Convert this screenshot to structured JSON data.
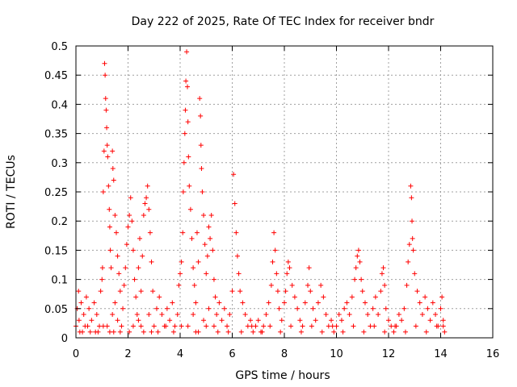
{
  "chart_data": {
    "type": "scatter",
    "title": "Day 222 of 2025, Rate Of TEC Index for receiver bndr",
    "xlabel": "GPS time / hours",
    "ylabel": "ROTI / TECUs",
    "xlim": [
      0,
      16
    ],
    "ylim": [
      0,
      0.5
    ],
    "x_ticks": [
      0,
      2,
      4,
      6,
      8,
      10,
      12,
      14,
      16
    ],
    "y_ticks": [
      0,
      0.05,
      0.1,
      0.15,
      0.2,
      0.25,
      0.3,
      0.35,
      0.4,
      0.45,
      0.5
    ],
    "x_tick_labels": [
      "0",
      "2",
      "4",
      "6",
      "8",
      "10",
      "12",
      "14",
      "16"
    ],
    "y_tick_labels": [
      "0",
      "0.05",
      "0.1",
      "0.15",
      "0.2",
      "0.25",
      "0.3",
      "0.35",
      "0.4",
      "0.45",
      "0.5"
    ],
    "grid": true,
    "marker": "+",
    "series": [
      {
        "name": "ROTI",
        "color": "#ff0000",
        "points": [
          [
            0.0,
            0.02
          ],
          [
            0.05,
            0.05
          ],
          [
            0.1,
            0.08
          ],
          [
            0.12,
            0.03
          ],
          [
            0.2,
            0.06
          ],
          [
            0.25,
            0.01
          ],
          [
            0.3,
            0.04
          ],
          [
            0.4,
            0.07
          ],
          [
            0.45,
            0.02
          ],
          [
            0.5,
            0.05
          ],
          [
            0.6,
            0.03
          ],
          [
            0.7,
            0.06
          ],
          [
            0.75,
            0.01
          ],
          [
            0.8,
            0.04
          ],
          [
            0.9,
            0.02
          ],
          [
            0.95,
            0.08
          ],
          [
            1.0,
            0.1
          ],
          [
            1.02,
            0.12
          ],
          [
            1.05,
            0.25
          ],
          [
            1.08,
            0.32
          ],
          [
            1.1,
            0.47
          ],
          [
            1.12,
            0.45
          ],
          [
            1.14,
            0.41
          ],
          [
            1.16,
            0.39
          ],
          [
            1.18,
            0.36
          ],
          [
            1.2,
            0.33
          ],
          [
            1.22,
            0.31
          ],
          [
            1.25,
            0.26
          ],
          [
            1.28,
            0.22
          ],
          [
            1.3,
            0.19
          ],
          [
            1.32,
            0.15
          ],
          [
            1.35,
            0.12
          ],
          [
            1.4,
            0.32
          ],
          [
            1.42,
            0.29
          ],
          [
            1.45,
            0.27
          ],
          [
            1.5,
            0.21
          ],
          [
            1.55,
            0.18
          ],
          [
            1.6,
            0.14
          ],
          [
            1.65,
            0.11
          ],
          [
            1.7,
            0.08
          ],
          [
            1.2,
            0.02
          ],
          [
            1.3,
            0.01
          ],
          [
            1.4,
            0.04
          ],
          [
            1.5,
            0.06
          ],
          [
            1.6,
            0.03
          ],
          [
            1.7,
            0.01
          ],
          [
            1.8,
            0.05
          ],
          [
            1.85,
            0.09
          ],
          [
            1.9,
            0.12
          ],
          [
            1.95,
            0.16
          ],
          [
            2.0,
            0.19
          ],
          [
            2.05,
            0.21
          ],
          [
            2.1,
            0.24
          ],
          [
            2.15,
            0.2
          ],
          [
            2.2,
            0.15
          ],
          [
            2.25,
            0.1
          ],
          [
            2.3,
            0.07
          ],
          [
            2.35,
            0.04
          ],
          [
            2.4,
            0.12
          ],
          [
            2.45,
            0.17
          ],
          [
            2.5,
            0.08
          ],
          [
            2.55,
            0.14
          ],
          [
            2.6,
            0.21
          ],
          [
            2.65,
            0.23
          ],
          [
            2.7,
            0.24
          ],
          [
            2.75,
            0.26
          ],
          [
            2.8,
            0.22
          ],
          [
            2.85,
            0.18
          ],
          [
            2.9,
            0.13
          ],
          [
            2.95,
            0.08
          ],
          [
            2.2,
            0.02
          ],
          [
            2.4,
            0.03
          ],
          [
            2.6,
            0.01
          ],
          [
            2.8,
            0.04
          ],
          [
            3.0,
            0.02
          ],
          [
            3.1,
            0.05
          ],
          [
            3.2,
            0.07
          ],
          [
            3.3,
            0.04
          ],
          [
            3.4,
            0.02
          ],
          [
            3.5,
            0.05
          ],
          [
            3.6,
            0.03
          ],
          [
            3.7,
            0.06
          ],
          [
            3.8,
            0.02
          ],
          [
            3.9,
            0.04
          ],
          [
            3.95,
            0.09
          ],
          [
            4.0,
            0.11
          ],
          [
            4.05,
            0.13
          ],
          [
            4.1,
            0.18
          ],
          [
            4.12,
            0.25
          ],
          [
            4.15,
            0.3
          ],
          [
            4.18,
            0.35
          ],
          [
            4.2,
            0.39
          ],
          [
            4.22,
            0.44
          ],
          [
            4.25,
            0.49
          ],
          [
            4.28,
            0.43
          ],
          [
            4.3,
            0.37
          ],
          [
            4.32,
            0.31
          ],
          [
            4.35,
            0.26
          ],
          [
            4.4,
            0.22
          ],
          [
            4.45,
            0.17
          ],
          [
            4.5,
            0.12
          ],
          [
            4.55,
            0.09
          ],
          [
            4.6,
            0.06
          ],
          [
            4.65,
            0.18
          ],
          [
            4.7,
            0.13
          ],
          [
            4.75,
            0.41
          ],
          [
            4.78,
            0.38
          ],
          [
            4.8,
            0.33
          ],
          [
            4.82,
            0.29
          ],
          [
            4.85,
            0.25
          ],
          [
            4.9,
            0.21
          ],
          [
            4.95,
            0.16
          ],
          [
            5.0,
            0.11
          ],
          [
            5.05,
            0.14
          ],
          [
            5.1,
            0.19
          ],
          [
            5.15,
            0.17
          ],
          [
            5.2,
            0.21
          ],
          [
            5.25,
            0.15
          ],
          [
            5.3,
            0.1
          ],
          [
            5.35,
            0.07
          ],
          [
            4.3,
            0.02
          ],
          [
            4.5,
            0.04
          ],
          [
            4.7,
            0.01
          ],
          [
            4.9,
            0.03
          ],
          [
            5.1,
            0.05
          ],
          [
            5.3,
            0.02
          ],
          [
            5.4,
            0.04
          ],
          [
            5.5,
            0.06
          ],
          [
            5.6,
            0.03
          ],
          [
            5.7,
            0.05
          ],
          [
            5.8,
            0.02
          ],
          [
            5.9,
            0.04
          ],
          [
            6.0,
            0.08
          ],
          [
            6.05,
            0.28
          ],
          [
            6.1,
            0.23
          ],
          [
            6.15,
            0.18
          ],
          [
            6.2,
            0.14
          ],
          [
            6.25,
            0.11
          ],
          [
            6.3,
            0.08
          ],
          [
            6.4,
            0.06
          ],
          [
            6.5,
            0.04
          ],
          [
            6.6,
            0.02
          ],
          [
            6.7,
            0.03
          ],
          [
            6.8,
            0.01
          ],
          [
            6.9,
            0.02
          ],
          [
            7.0,
            0.03
          ],
          [
            7.1,
            0.01
          ],
          [
            7.2,
            0.02
          ],
          [
            7.3,
            0.04
          ],
          [
            7.4,
            0.06
          ],
          [
            7.5,
            0.09
          ],
          [
            7.55,
            0.13
          ],
          [
            7.6,
            0.18
          ],
          [
            7.65,
            0.15
          ],
          [
            7.7,
            0.11
          ],
          [
            7.75,
            0.08
          ],
          [
            7.8,
            0.05
          ],
          [
            7.9,
            0.03
          ],
          [
            8.0,
            0.06
          ],
          [
            8.05,
            0.08
          ],
          [
            8.1,
            0.11
          ],
          [
            8.15,
            0.13
          ],
          [
            8.2,
            0.12
          ],
          [
            8.3,
            0.09
          ],
          [
            8.4,
            0.07
          ],
          [
            8.5,
            0.05
          ],
          [
            8.6,
            0.03
          ],
          [
            8.7,
            0.02
          ],
          [
            8.8,
            0.06
          ],
          [
            8.9,
            0.09
          ],
          [
            8.95,
            0.12
          ],
          [
            9.0,
            0.08
          ],
          [
            9.1,
            0.05
          ],
          [
            9.2,
            0.03
          ],
          [
            9.3,
            0.06
          ],
          [
            9.4,
            0.09
          ],
          [
            9.5,
            0.07
          ],
          [
            9.6,
            0.04
          ],
          [
            9.7,
            0.02
          ],
          [
            9.8,
            0.03
          ],
          [
            9.9,
            0.01
          ],
          [
            10.0,
            0.02
          ],
          [
            10.1,
            0.04
          ],
          [
            10.2,
            0.03
          ],
          [
            10.3,
            0.05
          ],
          [
            10.4,
            0.06
          ],
          [
            10.5,
            0.04
          ],
          [
            10.6,
            0.07
          ],
          [
            10.7,
            0.1
          ],
          [
            10.75,
            0.12
          ],
          [
            10.8,
            0.14
          ],
          [
            10.85,
            0.15
          ],
          [
            10.9,
            0.13
          ],
          [
            10.95,
            0.1
          ],
          [
            11.0,
            0.08
          ],
          [
            11.1,
            0.06
          ],
          [
            11.2,
            0.04
          ],
          [
            11.3,
            0.02
          ],
          [
            11.4,
            0.05
          ],
          [
            11.5,
            0.07
          ],
          [
            11.6,
            0.04
          ],
          [
            11.7,
            0.08
          ],
          [
            11.75,
            0.11
          ],
          [
            11.8,
            0.12
          ],
          [
            11.85,
            0.09
          ],
          [
            11.9,
            0.05
          ],
          [
            12.0,
            0.03
          ],
          [
            12.1,
            0.02
          ],
          [
            12.2,
            0.01
          ],
          [
            12.3,
            0.02
          ],
          [
            12.4,
            0.04
          ],
          [
            12.5,
            0.03
          ],
          [
            12.6,
            0.05
          ],
          [
            12.7,
            0.09
          ],
          [
            12.75,
            0.13
          ],
          [
            12.8,
            0.16
          ],
          [
            12.85,
            0.26
          ],
          [
            12.88,
            0.24
          ],
          [
            12.9,
            0.2
          ],
          [
            12.92,
            0.17
          ],
          [
            12.95,
            0.15
          ],
          [
            13.0,
            0.11
          ],
          [
            13.1,
            0.08
          ],
          [
            13.2,
            0.06
          ],
          [
            13.3,
            0.04
          ],
          [
            13.4,
            0.07
          ],
          [
            13.5,
            0.05
          ],
          [
            13.6,
            0.03
          ],
          [
            13.7,
            0.06
          ],
          [
            13.8,
            0.04
          ],
          [
            13.9,
            0.02
          ],
          [
            14.0,
            0.05
          ],
          [
            14.05,
            0.07
          ],
          [
            14.1,
            0.03
          ],
          [
            14.15,
            0.01
          ],
          [
            0.15,
            0.01
          ],
          [
            0.35,
            0.02
          ],
          [
            0.55,
            0.01
          ],
          [
            0.85,
            0.01
          ],
          [
            1.05,
            0.02
          ],
          [
            1.45,
            0.01
          ],
          [
            1.75,
            0.02
          ],
          [
            2.05,
            0.01
          ],
          [
            2.5,
            0.02
          ],
          [
            2.9,
            0.01
          ],
          [
            3.15,
            0.01
          ],
          [
            3.45,
            0.02
          ],
          [
            3.75,
            0.01
          ],
          [
            4.05,
            0.02
          ],
          [
            4.6,
            0.01
          ],
          [
            5.0,
            0.02
          ],
          [
            5.45,
            0.01
          ],
          [
            5.85,
            0.01
          ],
          [
            6.35,
            0.01
          ],
          [
            6.75,
            0.02
          ],
          [
            7.15,
            0.01
          ],
          [
            7.45,
            0.02
          ],
          [
            7.85,
            0.01
          ],
          [
            8.25,
            0.02
          ],
          [
            8.65,
            0.01
          ],
          [
            9.05,
            0.02
          ],
          [
            9.45,
            0.01
          ],
          [
            9.85,
            0.02
          ],
          [
            10.25,
            0.01
          ],
          [
            10.65,
            0.02
          ],
          [
            11.05,
            0.01
          ],
          [
            11.45,
            0.02
          ],
          [
            11.85,
            0.01
          ],
          [
            12.25,
            0.02
          ],
          [
            12.65,
            0.01
          ],
          [
            13.05,
            0.02
          ],
          [
            13.45,
            0.01
          ],
          [
            13.85,
            0.02
          ],
          [
            14.1,
            0.02
          ]
        ]
      }
    ]
  }
}
